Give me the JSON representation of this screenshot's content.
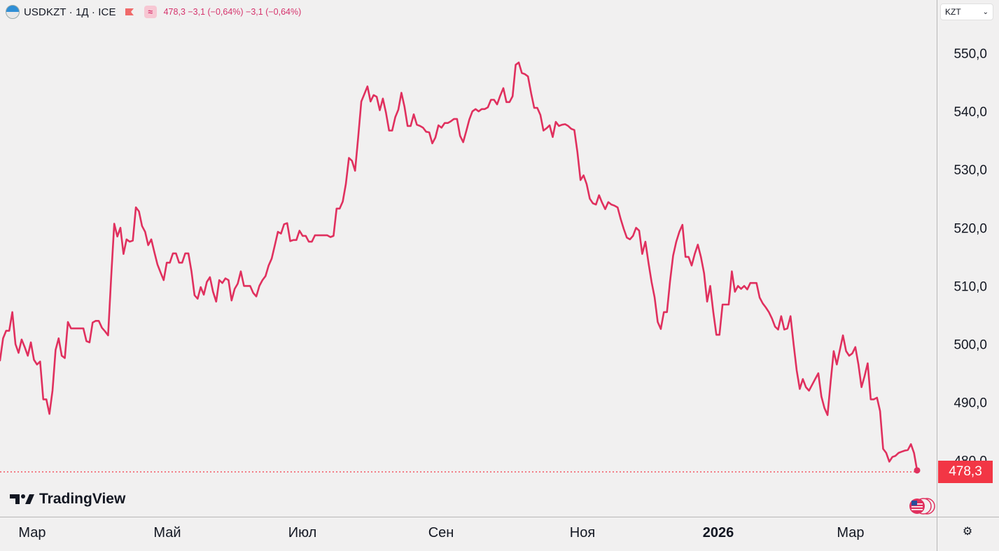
{
  "header": {
    "symbol_title": "USDKZT · 1Д · ICE",
    "approx_symbol": "≈",
    "quote_text": "478,3  −3,1 (−0,64%)  −3,1 (−0,64%)"
  },
  "currency_selector": {
    "label": "KZT"
  },
  "last_price_label": "478,3",
  "brand": {
    "name": "TradingView"
  },
  "colors": {
    "line": "#e0305e",
    "price_tag": "#f23645",
    "background": "#f1f0f0",
    "axis_line": "#b7b7b7"
  },
  "icons": {
    "symbol": "currency-globe-icon",
    "flag": "red-flag-icon",
    "settings": "settings-icon",
    "badge": "us-flag-icon"
  },
  "chart_data": {
    "type": "line",
    "series": [
      {
        "values": [
          497.2,
          501.0,
          502.3,
          502.3,
          505.5,
          500.0,
          498.5,
          500.8,
          499.5,
          498.0,
          500.3,
          497.3,
          496.5,
          497.0,
          490.5,
          490.5,
          488.0,
          492.0,
          499.0,
          501.0,
          498.0,
          497.6,
          503.8,
          502.7,
          502.7,
          502.7,
          502.7,
          502.7,
          500.5,
          500.3,
          503.7,
          504.0,
          504.0,
          502.8,
          502.2,
          501.5,
          511.5,
          520.7,
          518.5,
          520.0,
          515.5,
          518.0,
          517.6,
          517.8,
          523.5,
          522.8,
          520.3,
          519.3,
          517.0,
          518.0,
          515.8,
          513.7,
          512.3,
          511.0,
          514.0,
          514.0,
          515.6,
          515.6,
          514.0,
          514.0,
          515.6,
          515.6,
          512.5,
          508.4,
          507.8,
          509.8,
          508.5,
          510.7,
          511.5,
          509.0,
          507.3,
          511.0,
          510.5,
          511.3,
          511.0,
          507.5,
          509.5,
          510.4,
          512.5,
          510.0,
          510.0,
          510.0,
          508.8,
          508.2,
          510.0,
          511.0,
          511.7,
          513.5,
          514.7,
          517.0,
          519.3,
          519.0,
          520.6,
          520.8,
          517.7,
          517.9,
          517.9,
          519.5,
          518.6,
          518.6,
          517.6,
          517.6,
          518.7,
          518.7,
          518.7,
          518.7,
          518.7,
          518.4,
          518.6,
          523.3,
          523.3,
          524.5,
          527.5,
          532.0,
          531.5,
          529.8,
          535.5,
          541.7,
          543.0,
          544.3,
          541.7,
          542.8,
          542.5,
          540.2,
          542.2,
          539.8,
          536.7,
          536.7,
          539.0,
          540.3,
          543.2,
          540.8,
          537.5,
          537.5,
          539.5,
          537.7,
          537.5,
          537.2,
          536.5,
          536.4,
          534.5,
          535.5,
          537.6,
          537.2,
          538.0,
          538.0,
          538.3,
          538.7,
          538.7,
          535.8,
          534.7,
          536.6,
          538.6,
          540.0,
          540.4,
          540.0,
          540.4,
          540.4,
          540.7,
          542.0,
          542.0,
          541.2,
          542.7,
          544.0,
          541.6,
          541.6,
          542.6,
          548.0,
          548.4,
          546.6,
          546.4,
          546.0,
          543.1,
          540.6,
          540.6,
          539.4,
          536.7,
          537.1,
          537.6,
          535.6,
          538.2,
          537.5,
          537.7,
          537.8,
          537.5,
          537.0,
          536.8,
          533.0,
          528.2,
          529.0,
          527.5,
          525.0,
          524.2,
          524.0,
          525.6,
          524.3,
          523.2,
          524.4,
          524.0,
          523.8,
          523.5,
          521.5,
          519.8,
          518.3,
          518.0,
          518.6,
          520.0,
          519.5,
          515.5,
          517.6,
          514.0,
          510.7,
          508.0,
          503.8,
          502.6,
          505.5,
          505.5,
          510.8,
          515.2,
          517.6,
          519.3,
          520.5,
          515.0,
          515.0,
          513.5,
          515.5,
          517.1,
          515.0,
          512.2,
          507.3,
          510.0,
          505.5,
          501.6,
          501.6,
          506.8,
          506.8,
          506.8,
          512.5,
          509.0,
          510.0,
          509.5,
          510.0,
          509.4,
          510.5,
          510.5,
          510.5,
          508.0,
          507.0,
          506.3,
          505.5,
          504.4,
          503.0,
          502.5,
          504.8,
          502.5,
          502.7,
          504.8,
          500.0,
          495.5,
          492.3,
          494.0,
          492.6,
          492.0,
          493.0,
          494.0,
          495.0,
          491.0,
          489.0,
          487.8,
          493.5,
          498.8,
          496.5,
          499.0,
          501.5,
          498.8,
          498.0,
          498.4,
          499.5,
          496.5,
          492.6,
          494.5,
          496.7,
          490.5,
          490.5,
          490.8,
          488.5,
          482.0,
          481.3,
          479.8,
          480.6,
          480.8,
          481.3,
          481.5,
          481.7,
          481.8,
          482.8,
          481.3,
          478.3
        ]
      }
    ],
    "y_axis": {
      "ticks": [
        480.0,
        490.0,
        500.0,
        510.0,
        520.0,
        530.0,
        540.0,
        550.0
      ],
      "tick_labels": [
        "480,0",
        "490,0",
        "500,0",
        "510,0",
        "520,0",
        "530,0",
        "540,0",
        "550,0"
      ]
    },
    "x_axis": {
      "tick_labels": [
        "Мар",
        "Май",
        "Июл",
        "Сен",
        "Ноя",
        "2026",
        "Мар"
      ],
      "bold_labels": [
        "2026"
      ]
    },
    "last_value": 478.3,
    "grid": false,
    "scale": "right"
  }
}
